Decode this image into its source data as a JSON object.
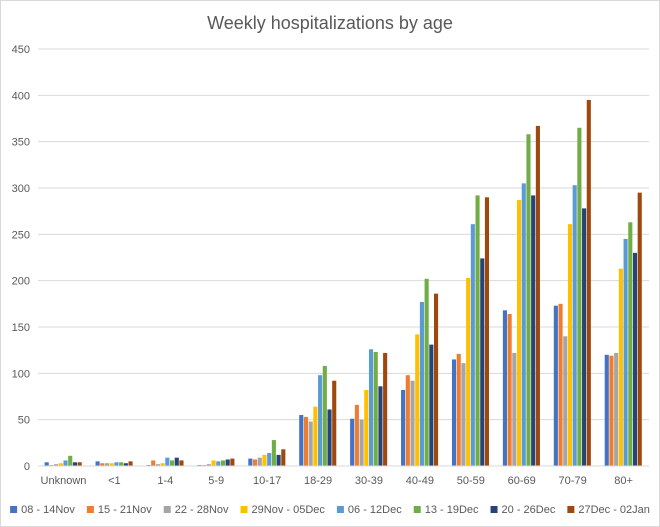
{
  "chart_data": {
    "type": "bar",
    "title": "Weekly hospitalizations by age",
    "xlabel": "",
    "ylabel": "",
    "ylim": [
      0,
      450
    ],
    "yticks": [
      0,
      50,
      100,
      150,
      200,
      250,
      300,
      350,
      400,
      450
    ],
    "grid": true,
    "legend_position": "bottom",
    "categories": [
      "Unknown",
      "<1",
      "1-4",
      "5-9",
      "10-17",
      "18-29",
      "30-39",
      "40-49",
      "50-59",
      "60-69",
      "70-79",
      "80+"
    ],
    "series": [
      {
        "name": "08 - 14Nov",
        "color": "#4472c4",
        "values": [
          4,
          5,
          1,
          1,
          8,
          55,
          51,
          82,
          115,
          168,
          173,
          120
        ]
      },
      {
        "name": "15 - 21Nov",
        "color": "#ed7d31",
        "values": [
          1,
          3,
          6,
          1,
          7,
          53,
          66,
          98,
          121,
          164,
          175,
          119
        ]
      },
      {
        "name": "22 - 28Nov",
        "color": "#a5a5a5",
        "values": [
          2,
          3,
          2,
          2,
          9,
          48,
          50,
          92,
          111,
          122,
          140,
          122
        ]
      },
      {
        "name": "29Nov - 05Dec",
        "color": "#ffc000",
        "values": [
          3,
          3,
          3,
          6,
          12,
          64,
          82,
          142,
          203,
          287,
          261,
          213
        ]
      },
      {
        "name": "06 - 12Dec",
        "color": "#5b9bd5",
        "values": [
          6,
          4,
          9,
          5,
          14,
          98,
          126,
          177,
          261,
          305,
          303,
          245
        ]
      },
      {
        "name": "13 - 19Dec",
        "color": "#70ad47",
        "values": [
          11,
          4,
          6,
          6,
          28,
          108,
          123,
          202,
          292,
          358,
          365,
          263
        ]
      },
      {
        "name": "20 - 26Dec",
        "color": "#264478",
        "values": [
          4,
          3,
          9,
          7,
          12,
          61,
          86,
          131,
          224,
          292,
          278,
          230
        ]
      },
      {
        "name": "27Dec - 02Jan",
        "color": "#9e480e",
        "values": [
          4,
          5,
          6,
          8,
          18,
          92,
          122,
          186,
          290,
          367,
          395,
          295
        ]
      }
    ]
  }
}
